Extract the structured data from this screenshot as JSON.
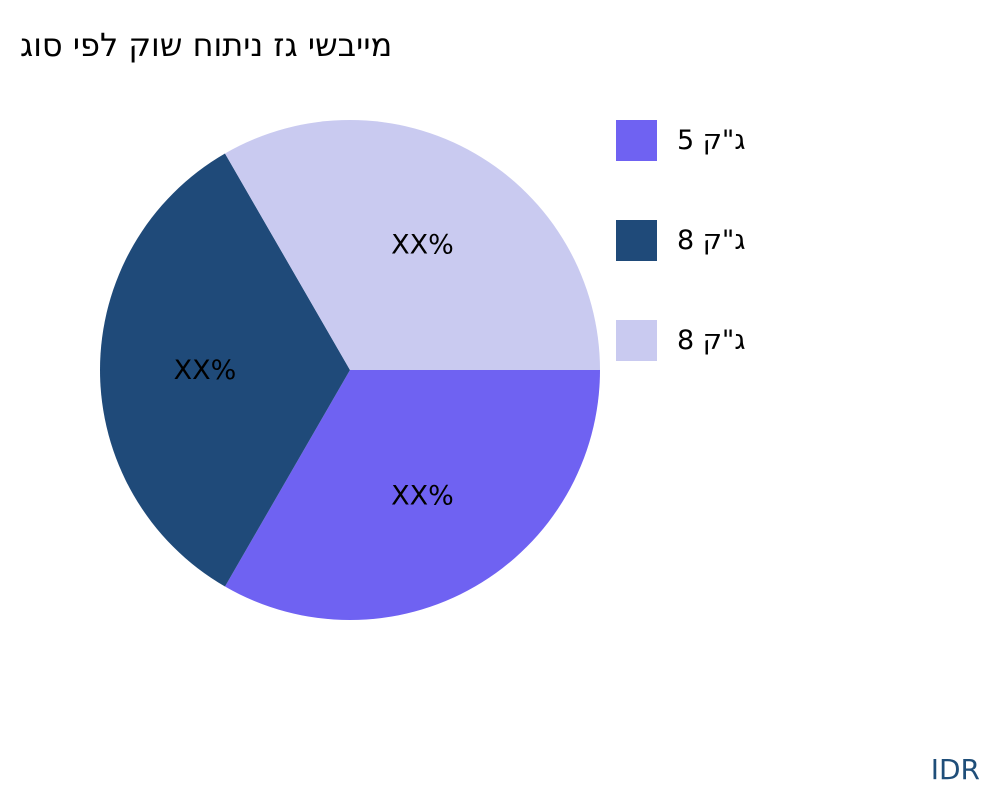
{
  "chart_data": {
    "type": "pie",
    "title": "גוס יפל קוש חותינ זג ישביימ",
    "slices": [
      {
        "label": "5 ק\"ג",
        "value": 33.33,
        "color": "#6f62f2",
        "data_label": "XX%"
      },
      {
        "label": "8 ק\"ג",
        "value": 33.33,
        "color": "#1f4a79",
        "data_label": "XX%"
      },
      {
        "label": "8 ק\"ג",
        "value": 33.33,
        "color": "#c9caf0",
        "data_label": "XX%"
      }
    ],
    "legend_position": "right"
  },
  "footer": {
    "brand": "IDR"
  }
}
